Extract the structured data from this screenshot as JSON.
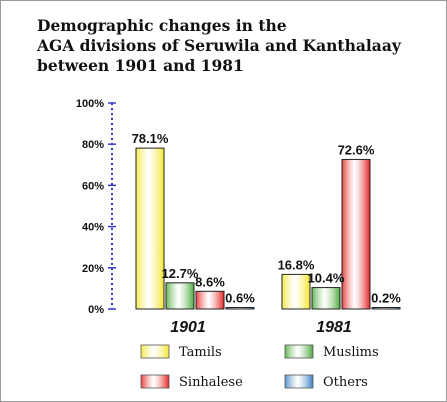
{
  "chart_data": {
    "type": "bar",
    "title": [
      "Demographic changes in the",
      "AGA divisions of Seruwila and Kanthalaay",
      "between 1901 and 1981"
    ],
    "categories": [
      "1901",
      "1981"
    ],
    "series": [
      {
        "name": "Tamils",
        "color": "#f3e62c",
        "values": [
          78.1,
          16.8
        ],
        "labels": [
          "78.1%",
          "16.8%"
        ]
      },
      {
        "name": "Muslims",
        "color": "#4caa3c",
        "values": [
          12.7,
          10.4
        ],
        "labels": [
          "12.7%",
          "10.4%"
        ]
      },
      {
        "name": "Sinhalese",
        "color": "#e42222",
        "values": [
          8.6,
          72.6
        ],
        "labels": [
          "8.6%",
          "72.6%"
        ]
      },
      {
        "name": "Others",
        "color": "#3b7fc4",
        "values": [
          0.6,
          0.2
        ],
        "labels": [
          "0.6%",
          "0.2%"
        ]
      }
    ],
    "ylim": [
      0,
      100
    ],
    "yticks": [
      "0%",
      "20%",
      "40%",
      "60%",
      "80%",
      "100%"
    ],
    "grid": false,
    "legend_position": "bottom"
  }
}
